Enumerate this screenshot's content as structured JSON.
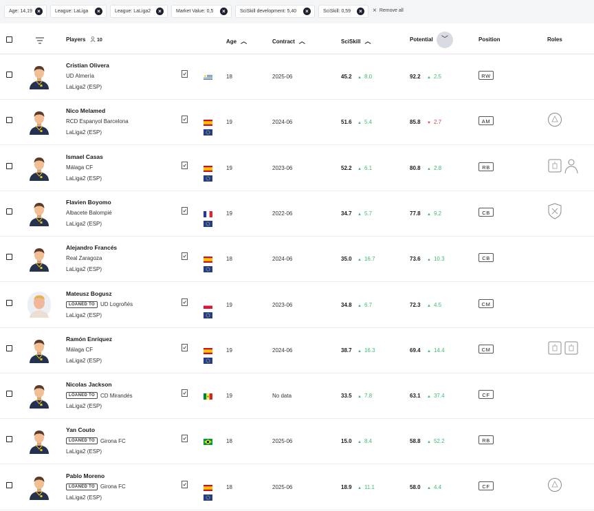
{
  "filters": {
    "chips": [
      "Age: 14,19",
      "League: LaLiga",
      "League: LaLiga2",
      "Market Value: 0,5",
      "SciSkill development: 5,40",
      "SciSkill: 0,59"
    ],
    "remove_all": "Remove all"
  },
  "header": {
    "players": "Players",
    "count": "10",
    "age": "Age",
    "contract": "Contract",
    "sciskill": "SciSkill",
    "potential": "Potential",
    "position": "Position",
    "roles": "Roles"
  },
  "loan_label": "LOANED TO",
  "players": [
    {
      "name": "Cristian Olivera",
      "club": "UD Almería",
      "league": "LaLiga2 (ESP)",
      "age": "18",
      "contract": "2025-06",
      "sci": "45.2",
      "sci_d": "8.0",
      "pot": "92.2",
      "pot_d": "2.5",
      "pos": "RW"
    },
    {
      "name": "Nico Melamed",
      "club": "RCD Espanyol Barcelona",
      "league": "LaLiga2 (ESP)",
      "age": "19",
      "contract": "2024-06",
      "sci": "51.6",
      "sci_d": "5.4",
      "pot": "85.8",
      "pot_d": "2.7",
      "pos": "AM"
    },
    {
      "name": "Ismael Casas",
      "club": "Málaga CF",
      "league": "LaLiga2 (ESP)",
      "age": "19",
      "contract": "2023-06",
      "sci": "52.2",
      "sci_d": "6.1",
      "pot": "80.8",
      "pot_d": "2.8",
      "pos": "RB"
    },
    {
      "name": "Flavien Boyomo",
      "club": "Albacete Balompié",
      "league": "LaLiga2 (ESP)",
      "age": "19",
      "contract": "2022-06",
      "sci": "34.7",
      "sci_d": "5.7",
      "pot": "77.8",
      "pot_d": "9.2",
      "pos": "CB"
    },
    {
      "name": "Alejandro Francés",
      "club": "Real Zaragoza",
      "league": "LaLiga2 (ESP)",
      "age": "18",
      "contract": "2024-06",
      "sci": "35.0",
      "sci_d": "16.7",
      "pot": "73.6",
      "pot_d": "10.3",
      "pos": "CB"
    },
    {
      "name": "Mateusz Bogusz",
      "club": "UD Logroñés",
      "league": "LaLiga2 (ESP)",
      "age": "19",
      "contract": "2023-06",
      "sci": "34.8",
      "sci_d": "6.7",
      "pot": "72.3",
      "pot_d": "4.5",
      "pos": "CM"
    },
    {
      "name": "Ramón Enríquez",
      "club": "Málaga CF",
      "league": "LaLiga2 (ESP)",
      "age": "19",
      "contract": "2024-06",
      "sci": "38.7",
      "sci_d": "16.3",
      "pot": "69.4",
      "pot_d": "14.4",
      "pos": "CM"
    },
    {
      "name": "Nicolas Jackson",
      "club": "CD Mirandés",
      "league": "LaLiga2 (ESP)",
      "age": "19",
      "contract": "No data",
      "sci": "33.5",
      "sci_d": "7.8",
      "pot": "63.1",
      "pot_d": "37.4",
      "pos": "CF"
    },
    {
      "name": "Yan Couto",
      "club": "Girona FC",
      "league": "LaLiga2 (ESP)",
      "age": "18",
      "contract": "2025-06",
      "sci": "15.0",
      "sci_d": "8.4",
      "pot": "58.8",
      "pot_d": "52.2",
      "pos": "RB"
    },
    {
      "name": "Pablo Moreno",
      "club": "Girona FC",
      "league": "LaLiga2 (ESP)",
      "age": "18",
      "contract": "2025-06",
      "sci": "18.9",
      "sci_d": "11.1",
      "pot": "58.0",
      "pot_d": "4.4",
      "pos": "CF"
    }
  ]
}
